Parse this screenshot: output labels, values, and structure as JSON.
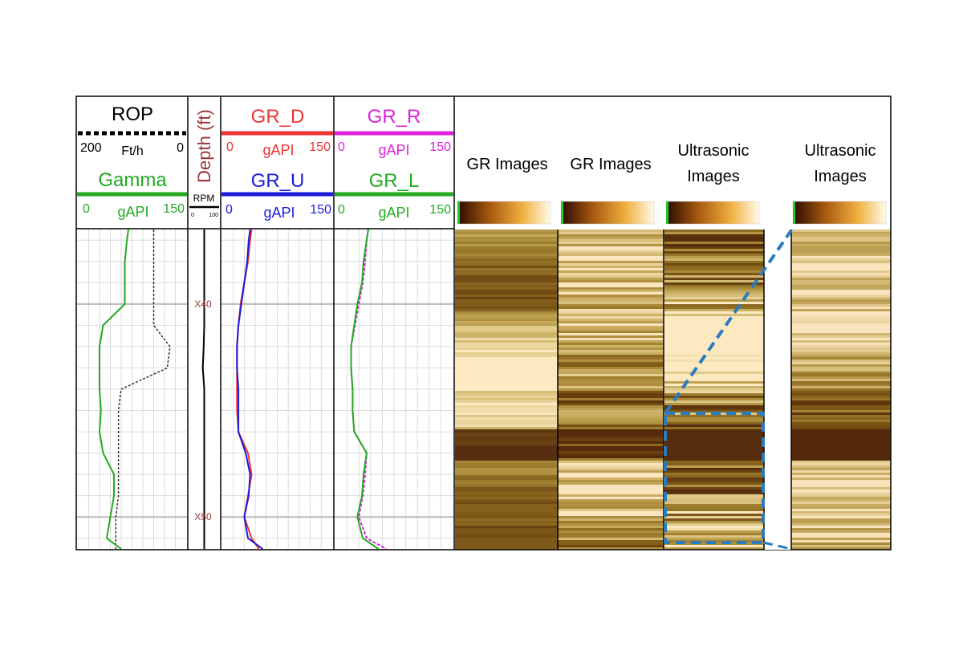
{
  "headers": {
    "rop": {
      "title": "ROP",
      "min": "200",
      "unit": "Ft/h",
      "max": "0"
    },
    "gamma": {
      "title": "Gamma",
      "min": "0",
      "unit": "gAPI",
      "max": "150"
    },
    "depth": {
      "title": "Depth (ft)",
      "rpm": "RPM",
      "rpm_min": "0",
      "rpm_max": "100"
    },
    "gr_d": {
      "title": "GR_D",
      "min": "0",
      "unit": "gAPI",
      "max": "150"
    },
    "gr_u": {
      "title": "GR_U",
      "min": "0",
      "unit": "gAPI",
      "max": "150"
    },
    "gr_r": {
      "title": "GR_R",
      "min": "0",
      "unit": "gAPI",
      "max": "150"
    },
    "gr_l": {
      "title": "GR_L",
      "min": "0",
      "unit": "gAPI",
      "max": "150"
    },
    "img1": {
      "title": "GR Images"
    },
    "img2": {
      "title": "GR Images"
    },
    "img3": {
      "line1": "Ultrasonic",
      "line2": "Images"
    },
    "img4": {
      "line1": "Ultrasonic",
      "line2": "Images"
    }
  },
  "colors": {
    "rop": "#333333",
    "gamma": "#22aa22",
    "gr_d": "#ee3333",
    "gr_u": "#1a1adc",
    "gr_r": "#dd22dd",
    "gr_l": "#22aa22",
    "depth_title": "#9a3535",
    "depth_label": "#9a3535",
    "zoom_box": "#2b7bbf",
    "img_dark": "#3a1400",
    "img_mid": "#c98412",
    "img_light": "#fff6dc"
  },
  "chart_data": {
    "type": "line",
    "depth_labels": [
      "X40",
      "X50"
    ],
    "depth_label_values": [
      40,
      50
    ],
    "depth_range": [
      36.5,
      51.5
    ],
    "depth": [
      36.5,
      37,
      38,
      39,
      40,
      41,
      42,
      43,
      44,
      45,
      46,
      47,
      48,
      49,
      50,
      51,
      51.5
    ],
    "series": [
      {
        "name": "ROP",
        "unit": "Ft/h",
        "scale": [
          200,
          0
        ],
        "values": [
          60,
          60,
          60,
          60,
          60,
          60,
          30,
          35,
          120,
          125,
          125,
          125,
          125,
          125,
          130,
          130,
          130
        ]
      },
      {
        "name": "Gamma",
        "unit": "gAPI",
        "scale": [
          0,
          150
        ],
        "values": [
          70,
          68,
          65,
          65,
          65,
          35,
          30,
          30,
          30,
          32,
          30,
          35,
          50,
          50,
          45,
          40,
          60
        ]
      },
      {
        "name": "GR_D",
        "unit": "gAPI",
        "scale": [
          0,
          150
        ],
        "values": [
          40,
          38,
          35,
          30,
          25,
          22,
          20,
          20,
          20,
          20,
          22,
          35,
          40,
          35,
          30,
          40,
          50
        ]
      },
      {
        "name": "GR_U",
        "unit": "gAPI",
        "scale": [
          0,
          150
        ],
        "values": [
          38,
          36,
          34,
          30,
          26,
          22,
          20,
          20,
          22,
          22,
          22,
          32,
          38,
          36,
          30,
          35,
          55
        ]
      },
      {
        "name": "GR_R",
        "unit": "gAPI",
        "scale": [
          0,
          150
        ],
        "values": [
          42,
          40,
          38,
          35,
          30,
          25,
          20,
          20,
          22,
          22,
          24,
          40,
          38,
          35,
          30,
          40,
          65
        ]
      },
      {
        "name": "GR_L",
        "unit": "gAPI",
        "scale": [
          0,
          150
        ],
        "values": [
          42,
          40,
          36,
          34,
          28,
          24,
          20,
          20,
          22,
          22,
          24,
          40,
          36,
          34,
          28,
          35,
          55
        ]
      },
      {
        "name": "RPM",
        "unit": "",
        "scale": [
          0,
          100
        ],
        "values": [
          50,
          50,
          50,
          50,
          50,
          50,
          48,
          45,
          50,
          50,
          50,
          50,
          50,
          50,
          50,
          50,
          50
        ]
      }
    ]
  }
}
